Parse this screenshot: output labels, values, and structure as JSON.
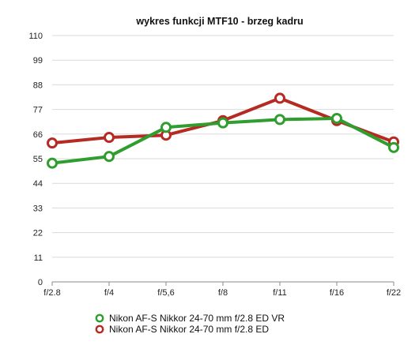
{
  "chart_data": {
    "type": "line",
    "title": "wykres funkcji MTF10 - brzeg kadru",
    "xlabel": "",
    "ylabel": "",
    "categories": [
      "f/2.8",
      "f/4",
      "f/5,6",
      "f/8",
      "f/11",
      "f/16",
      "f/22"
    ],
    "yticks": [
      0,
      11,
      22,
      33,
      44,
      55,
      66,
      77,
      88,
      99,
      110
    ],
    "ylim": [
      0,
      110
    ],
    "grid": true,
    "legend_position": "bottom",
    "series": [
      {
        "name": "Nikon AF-S Nikkor 24-70 mm f/2.8 ED VR",
        "color": "#2f9e2f",
        "values": [
          53,
          56,
          69,
          71,
          72.5,
          73,
          60
        ]
      },
      {
        "name": "Nikon AF-S Nikkor 24-70 mm f/2.8 ED",
        "color": "#b52a22",
        "values": [
          62,
          64.5,
          65.5,
          72,
          82,
          72,
          62.5
        ]
      }
    ]
  }
}
